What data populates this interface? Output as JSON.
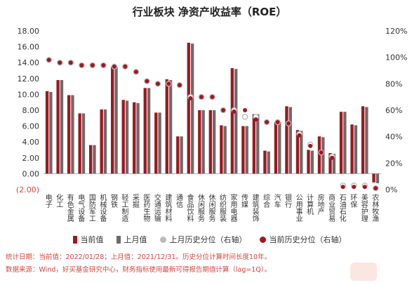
{
  "chart_data": {
    "type": "bar",
    "title": "行业板块 净资产收益率（ROE）",
    "categories": [
      "电子",
      "化工",
      "有色金属",
      "电气设备",
      "国防军工",
      "机械设备",
      "钢铁",
      "轻工制造",
      "采掘",
      "医药生物",
      "交通运输",
      "建筑材料",
      "通信",
      "食品饮料",
      "休闲服务",
      "休闲服务",
      "纺织服装",
      "家用电器",
      "传媒",
      "建筑装饰",
      "综合",
      "汽车",
      "银行",
      "公用事业",
      "计算机",
      "房地产",
      "商业贸易",
      "石油石化",
      "环保",
      "美容护理",
      "农林牧渔"
    ],
    "series": [
      {
        "name": "当前值",
        "axis": "left",
        "color": "#a0171e",
        "values": [
          10.4,
          11.8,
          9.9,
          7.6,
          3.6,
          8.1,
          13.5,
          9.3,
          9.0,
          10.8,
          7.7,
          11.9,
          4.7,
          16.5,
          8.0,
          8.0,
          6.1,
          13.3,
          6.0,
          7.5,
          2.9,
          6.5,
          8.5,
          5.5,
          3.0,
          4.7,
          2.6,
          7.8,
          6.2,
          8.5,
          -1.1
        ]
      },
      {
        "name": "上月值",
        "axis": "left",
        "color": "#6b6b6b",
        "values": [
          10.3,
          11.8,
          9.9,
          7.6,
          3.6,
          8.1,
          13.4,
          9.2,
          8.9,
          10.8,
          7.7,
          11.8,
          4.7,
          16.4,
          8.0,
          8.0,
          6.0,
          13.2,
          6.0,
          7.5,
          2.8,
          6.5,
          8.4,
          5.4,
          2.9,
          4.6,
          2.5,
          7.8,
          6.1,
          8.4,
          -1.2
        ]
      },
      {
        "name": "上月历史分位（右轴）",
        "axis": "right",
        "color": "#bbbbbb",
        "values": [
          98,
          96,
          96,
          94,
          94,
          94,
          93,
          93,
          89,
          82,
          80,
          80,
          79,
          70,
          70,
          70,
          60,
          60,
          55,
          55,
          51,
          51,
          50,
          42,
          34,
          28,
          25,
          3,
          3,
          3,
          1
        ]
      },
      {
        "name": "当前历史分位（右轴）",
        "axis": "right",
        "color": "#a0171e",
        "values": [
          98,
          96,
          96,
          94,
          94,
          94,
          93,
          93,
          89,
          82,
          80,
          80,
          79,
          69,
          70,
          70,
          60,
          59,
          60,
          53,
          51,
          51,
          50,
          41,
          33,
          28,
          24,
          2,
          2,
          2,
          1
        ]
      }
    ],
    "ylim_left": [
      -2,
      18
    ],
    "ylim_right": [
      0,
      120
    ],
    "yticks_left": [
      "(2.00)",
      "0.00",
      "2.00",
      "4.00",
      "6.00",
      "8.00",
      "10.00",
      "12.00",
      "14.00",
      "16.00",
      "18.00"
    ],
    "yticks_right": [
      "0%",
      "20%",
      "40%",
      "60%",
      "80%",
      "100%",
      "120%"
    ],
    "grid": false,
    "legend_position": "bottom"
  },
  "footnotes": {
    "line1": "统计日期：当前值：2022/01/28；上月值：2021/12/31。历史分位计算时间长度10年。",
    "line2": "数据来源：Wind，好买基金研究中心，财务指标使用最新可得报告期值计算（lag=1Q）。"
  }
}
